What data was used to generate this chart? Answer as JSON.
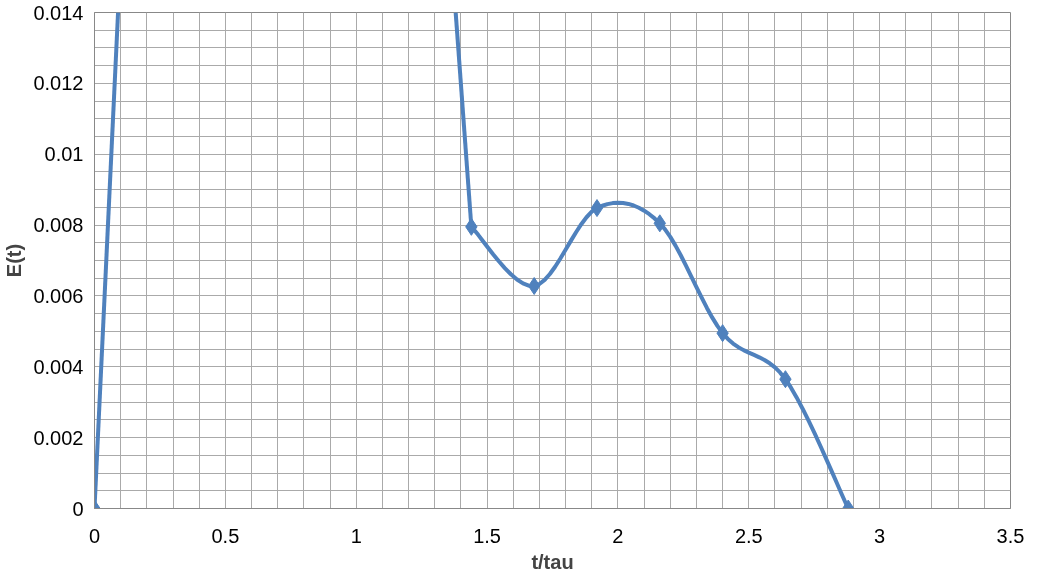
{
  "chart_data": {
    "type": "line",
    "xlabel": "t/tau",
    "ylabel": "E(t)",
    "series": [
      {
        "color": "#4f81bd",
        "marker": "diamond",
        "x": [
          0,
          0.24,
          0.48,
          0.72,
          0.96,
          1.2,
          1.44,
          1.68,
          1.92,
          2.16,
          2.4,
          2.64,
          2.88
        ],
        "values": [
          0,
          null,
          null,
          null,
          null,
          null,
          0.00795,
          0.00628,
          0.00848,
          0.00805,
          0.00495,
          0.00365,
          0
        ]
      },
      {
        "color": "#4f81bd",
        "marker": "none",
        "x": [
          0,
          0.09,
          0.24,
          1.38,
          1.44
        ],
        "values": [
          0,
          0.014,
          null,
          0.014,
          0.00795
        ]
      }
    ],
    "xlim": [
      0,
      3.5
    ],
    "ylim": [
      0,
      0.014
    ],
    "xticks": [
      0,
      {
        "value": 0.1,
        "label": null
      },
      {
        "value": 0.2,
        "label": null
      },
      {
        "value": 0.3,
        "label": null
      },
      {
        "value": 0.4,
        "label": null
      },
      0.5,
      {
        "value": 0.6,
        "label": null
      },
      {
        "value": 0.7,
        "label": null
      },
      {
        "value": 0.8,
        "label": null
      },
      {
        "value": 0.9,
        "label": null
      },
      1,
      {
        "value": 1.1,
        "label": null
      },
      {
        "value": 1.2,
        "label": null
      },
      {
        "value": 1.3,
        "label": null
      },
      {
        "value": 1.4,
        "label": null
      },
      1.5,
      {
        "value": 1.6,
        "label": null
      },
      {
        "value": 1.7,
        "label": null
      },
      {
        "value": 1.8,
        "label": null
      },
      {
        "value": 1.9,
        "label": null
      },
      2,
      {
        "value": 2.1,
        "label": null
      },
      {
        "value": 2.2,
        "label": null
      },
      {
        "value": 2.3,
        "label": null
      },
      {
        "value": 2.4,
        "label": null
      },
      2.5,
      {
        "value": 2.6,
        "label": null
      },
      {
        "value": 2.7,
        "label": null
      },
      {
        "value": 2.8,
        "label": null
      },
      {
        "value": 2.9,
        "label": null
      },
      3,
      {
        "value": 3.1,
        "label": null
      },
      {
        "value": 3.2,
        "label": null
      },
      {
        "value": 3.3,
        "label": null
      },
      {
        "value": 3.4,
        "label": null
      },
      3.5
    ],
    "yticks": [
      0,
      {
        "value": 0.0005,
        "label": null
      },
      {
        "value": 0.001,
        "label": null
      },
      {
        "value": 0.0015,
        "label": null
      },
      0.002,
      {
        "value": 0.0025,
        "label": null
      },
      {
        "value": 0.003,
        "label": null
      },
      {
        "value": 0.0035,
        "label": null
      },
      0.004,
      {
        "value": 0.0045,
        "label": null
      },
      {
        "value": 0.005,
        "label": null
      },
      {
        "value": 0.0055,
        "label": null
      },
      0.006,
      {
        "value": 0.0065,
        "label": null
      },
      {
        "value": 0.007,
        "label": null
      },
      {
        "value": 0.0075,
        "label": null
      },
      0.008,
      {
        "value": 0.0085,
        "label": null
      },
      {
        "value": 0.009,
        "label": null
      },
      {
        "value": 0.0095,
        "label": null
      },
      0.01,
      {
        "value": 0.0105,
        "label": null
      },
      {
        "value": 0.011,
        "label": null
      },
      {
        "value": 0.0115,
        "label": null
      },
      0.012,
      {
        "value": 0.0125,
        "label": null
      },
      {
        "value": 0.013,
        "label": null
      },
      {
        "value": 0.0135,
        "label": null
      },
      0.014
    ],
    "grid": true
  }
}
